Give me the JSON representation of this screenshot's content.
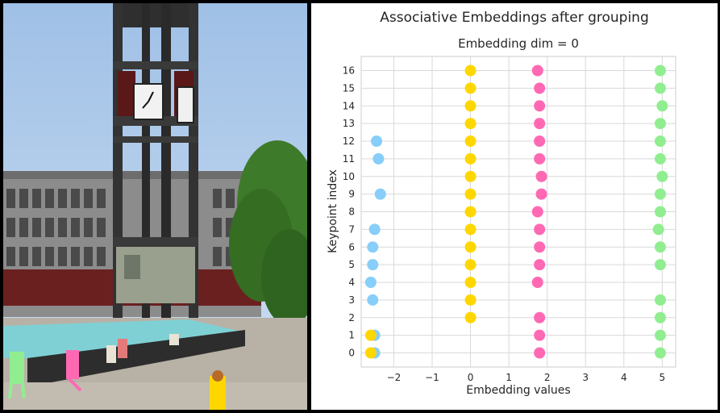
{
  "chart_data": {
    "type": "scatter",
    "suptitle": "Associative Embeddings after grouping",
    "title": "Embedding dim = 0",
    "xlabel": "Embedding values",
    "ylabel": "Keypoint index",
    "xlim": [
      -2.85,
      5.35
    ],
    "ylim": [
      -0.8,
      16.8
    ],
    "xticks": [
      -2,
      -1,
      0,
      1,
      2,
      3,
      4,
      5
    ],
    "xtick_labels": [
      "−2",
      "−1",
      "0",
      "1",
      "2",
      "3",
      "4",
      "5"
    ],
    "yticks": [
      0,
      1,
      2,
      3,
      4,
      5,
      6,
      7,
      8,
      9,
      10,
      11,
      12,
      13,
      14,
      15,
      16
    ],
    "grid": true,
    "series": [
      {
        "color": "#87cefa",
        "points": [
          [
            -2.5,
            0
          ],
          [
            -2.5,
            1
          ],
          [
            -2.55,
            3
          ],
          [
            -2.6,
            4
          ],
          [
            -2.55,
            5
          ],
          [
            -2.55,
            6
          ],
          [
            -2.5,
            7
          ],
          [
            -2.35,
            9
          ],
          [
            -2.4,
            11
          ],
          [
            -2.45,
            12
          ]
        ]
      },
      {
        "color": "#ffd700",
        "points": [
          [
            -2.6,
            0
          ],
          [
            -2.6,
            1
          ],
          [
            0,
            2
          ],
          [
            0,
            3
          ],
          [
            0,
            4
          ],
          [
            0,
            5
          ],
          [
            0,
            6
          ],
          [
            0,
            7
          ],
          [
            0,
            8
          ],
          [
            0,
            9
          ],
          [
            0,
            10
          ],
          [
            0,
            11
          ],
          [
            0,
            12
          ],
          [
            0,
            13
          ],
          [
            0,
            14
          ],
          [
            0,
            15
          ],
          [
            0,
            16
          ]
        ]
      },
      {
        "color": "#ff69b4",
        "points": [
          [
            1.8,
            0
          ],
          [
            1.8,
            1
          ],
          [
            1.8,
            2
          ],
          [
            1.75,
            4
          ],
          [
            1.8,
            5
          ],
          [
            1.8,
            6
          ],
          [
            1.8,
            7
          ],
          [
            1.75,
            8
          ],
          [
            1.85,
            9
          ],
          [
            1.85,
            10
          ],
          [
            1.8,
            11
          ],
          [
            1.8,
            12
          ],
          [
            1.8,
            13
          ],
          [
            1.8,
            14
          ],
          [
            1.8,
            15
          ],
          [
            1.75,
            16
          ]
        ]
      },
      {
        "color": "#90ee90",
        "points": [
          [
            4.95,
            0
          ],
          [
            4.95,
            1
          ],
          [
            4.95,
            2
          ],
          [
            4.95,
            3
          ],
          [
            4.95,
            5
          ],
          [
            4.95,
            6
          ],
          [
            4.9,
            7
          ],
          [
            4.95,
            8
          ],
          [
            4.95,
            9
          ],
          [
            5.0,
            10
          ],
          [
            4.95,
            11
          ],
          [
            4.95,
            12
          ],
          [
            4.95,
            13
          ],
          [
            5.0,
            14
          ],
          [
            4.95,
            15
          ],
          [
            4.95,
            16
          ]
        ]
      }
    ]
  },
  "photo": {
    "sky_color": "#b5d0ee",
    "tower_color": "#3a3a3a",
    "clock_face_color": "#f2f2f2",
    "building_color": "#8f8f8f",
    "tree_color": "#3d7a2a",
    "pool_color": "#7fd0d4",
    "plaza_color": "#b8b1a6",
    "keypoint_colors": [
      "#90ee90",
      "#ff69b4",
      "#ffd700"
    ]
  }
}
